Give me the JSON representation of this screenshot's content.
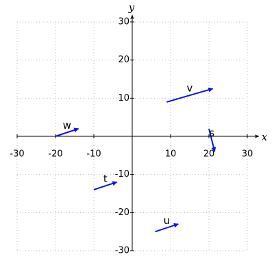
{
  "chart_data": {
    "type": "vector",
    "x_label": "x",
    "y_label": "y",
    "xlim": [
      -30,
      30
    ],
    "ylim": [
      -30,
      30
    ],
    "xticks": [
      -30,
      -20,
      -10,
      10,
      20,
      30
    ],
    "yticks": [
      -30,
      -20,
      -10,
      10,
      20,
      30
    ],
    "grid": true,
    "color": "#0a14e6",
    "label_color": "#e01010",
    "vectors": [
      {
        "name": "v",
        "start": [
          9,
          9
        ],
        "end": [
          21,
          12.5
        ]
      },
      {
        "name": "w",
        "start": [
          -20,
          0
        ],
        "end": [
          -14,
          2
        ]
      },
      {
        "name": "s",
        "start": [
          20,
          2
        ],
        "end": [
          21.5,
          -4
        ]
      },
      {
        "name": "t",
        "start": [
          -10,
          -14
        ],
        "end": [
          -4,
          -12
        ]
      },
      {
        "name": "u",
        "start": [
          6,
          -25
        ],
        "end": [
          12,
          -23
        ]
      }
    ]
  }
}
